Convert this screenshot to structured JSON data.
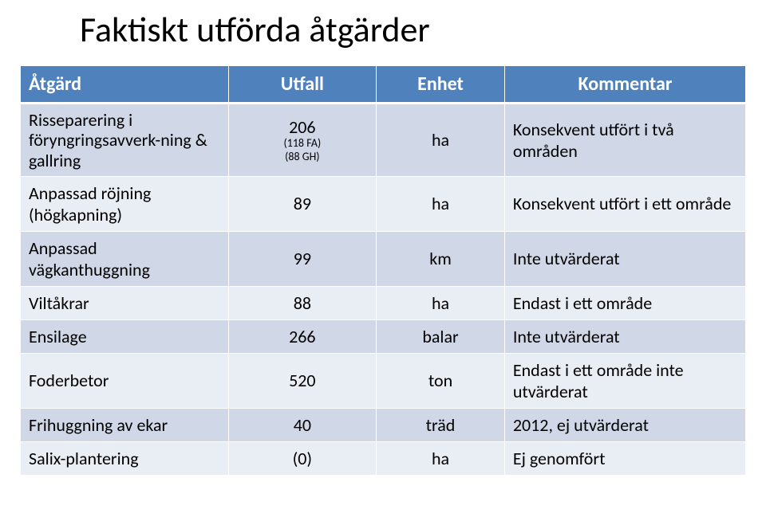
{
  "title": "Faktiskt utförda åtgärder",
  "table": {
    "headers": [
      "Åtgärd",
      "Utfall",
      "Enhet",
      "Kommentar"
    ],
    "rows": [
      {
        "atgard": "Risseparering i föryngringsavverk-ning & gallring",
        "utfall_main": "206",
        "utfall_sub1": "(118 FA)",
        "utfall_sub2": "(88 GH)",
        "enhet": "ha",
        "kommentar": "Konsekvent utfört i två områden"
      },
      {
        "atgard": "Anpassad röjning (högkapning)",
        "utfall_main": "89",
        "enhet": "ha",
        "kommentar": "Konsekvent utfört i ett område"
      },
      {
        "atgard": "Anpassad vägkanthuggning",
        "utfall_main": "99",
        "enhet": "km",
        "kommentar": "Inte utvärderat"
      },
      {
        "atgard": "Viltåkrar",
        "utfall_main": "88",
        "enhet": "ha",
        "kommentar": "Endast i ett område"
      },
      {
        "atgard": "Ensilage",
        "utfall_main": "266",
        "enhet": "balar",
        "kommentar": "Inte utvärderat"
      },
      {
        "atgard": "Foderbetor",
        "utfall_main": "520",
        "enhet": "ton",
        "kommentar": "Endast i ett område inte utvärderat"
      },
      {
        "atgard": "Frihuggning av ekar",
        "utfall_main": "40",
        "enhet": "träd",
        "kommentar": "2012, ej utvärderat"
      },
      {
        "atgard": "Salix-plantering",
        "utfall_main": "(0)",
        "enhet": "ha",
        "kommentar": "Ej genomfört"
      }
    ]
  },
  "styling": {
    "title_fontsize": 44,
    "header_bg": "#4f81bd",
    "header_color": "#ffffff",
    "band_a": "#d0d8e8",
    "band_b": "#e9edf4",
    "text_color": "#000000",
    "cell_fontsize": 22,
    "header_fontsize": 24,
    "sub_fontsize": 14
  }
}
